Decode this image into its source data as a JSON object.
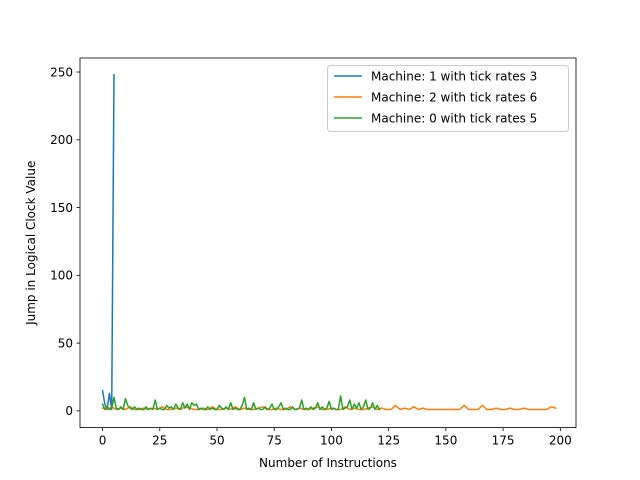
{
  "chart_data": {
    "type": "line",
    "title": "",
    "xlabel": "Number of Instructions",
    "ylabel": "Jump in Logical Clock Value",
    "xlim": [
      -9.85,
      206.85
    ],
    "ylim": [
      -12.35,
      260.35
    ],
    "xticks": [
      0,
      25,
      50,
      75,
      100,
      125,
      150,
      175,
      200
    ],
    "yticks": [
      0,
      50,
      100,
      150,
      200,
      250
    ],
    "grid": false,
    "legend_position": "top-right",
    "series": [
      {
        "name": "Machine: 1 with tick rates 3",
        "color": "#1f77b4",
        "x": [
          0,
          1,
          2,
          3,
          4,
          5
        ],
        "y": [
          15,
          5,
          1,
          13,
          1,
          248
        ]
      },
      {
        "name": "Machine: 2 with tick rates 6",
        "color": "#ff7f0e",
        "x": [
          0,
          2,
          4,
          6,
          8,
          10,
          12,
          14,
          16,
          18,
          20,
          22,
          24,
          26,
          28,
          30,
          32,
          34,
          36,
          38,
          40,
          42,
          44,
          46,
          48,
          50,
          52,
          54,
          56,
          58,
          60,
          62,
          64,
          66,
          68,
          70,
          72,
          74,
          76,
          78,
          80,
          82,
          84,
          86,
          88,
          90,
          92,
          94,
          96,
          98,
          100,
          102,
          104,
          106,
          108,
          110,
          112,
          114,
          116,
          118,
          120,
          122,
          124,
          126,
          128,
          130,
          132,
          134,
          136,
          138,
          140,
          142,
          144,
          146,
          148,
          150,
          152,
          154,
          156,
          158,
          160,
          162,
          164,
          166,
          168,
          170,
          172,
          174,
          176,
          178,
          180,
          182,
          184,
          186,
          188,
          190,
          192,
          194,
          196,
          198
        ],
        "y": [
          2,
          1,
          3,
          1,
          2,
          1,
          3,
          1,
          1,
          2,
          1,
          2,
          1,
          3,
          1,
          1,
          2,
          1,
          3,
          2,
          1,
          1,
          2,
          1,
          3,
          1,
          1,
          2,
          1,
          3,
          1,
          2,
          1,
          1,
          2,
          3,
          1,
          1,
          2,
          1,
          1,
          3,
          1,
          2,
          1,
          1,
          2,
          3,
          1,
          1,
          2,
          1,
          1,
          3,
          1,
          2,
          1,
          1,
          2,
          3,
          1,
          2,
          1,
          1,
          4,
          1,
          2,
          1,
          3,
          1,
          2,
          1,
          1,
          1,
          1,
          1,
          1,
          1,
          1,
          4,
          1,
          1,
          1,
          4,
          1,
          1,
          2,
          1,
          1,
          2,
          1,
          1,
          2,
          1,
          1,
          1,
          1,
          1,
          3,
          2
        ]
      },
      {
        "name": "Machine: 0 with tick rates 5",
        "color": "#2ca02c",
        "x": [
          0,
          1,
          2,
          3,
          4,
          5,
          6,
          7,
          8,
          9,
          10,
          11,
          12,
          13,
          14,
          15,
          16,
          17,
          18,
          19,
          20,
          21,
          22,
          23,
          24,
          25,
          26,
          27,
          28,
          29,
          30,
          31,
          32,
          33,
          34,
          35,
          36,
          37,
          38,
          39,
          40,
          41,
          42,
          43,
          44,
          45,
          46,
          47,
          48,
          49,
          50,
          51,
          52,
          53,
          54,
          55,
          56,
          57,
          58,
          59,
          60,
          61,
          62,
          63,
          64,
          65,
          66,
          67,
          68,
          69,
          70,
          71,
          72,
          73,
          74,
          75,
          76,
          77,
          78,
          79,
          80,
          81,
          82,
          83,
          84,
          85,
          86,
          87,
          88,
          89,
          90,
          91,
          92,
          93,
          94,
          95,
          96,
          97,
          98,
          99,
          100,
          101,
          102,
          103,
          104,
          105,
          106,
          107,
          108,
          109,
          110,
          111,
          112,
          113,
          114,
          115,
          116,
          117,
          118,
          119,
          120,
          121
        ],
        "y": [
          5,
          1,
          3,
          1,
          2,
          10,
          2,
          1,
          3,
          1,
          9,
          4,
          2,
          1,
          3,
          1,
          2,
          1,
          1,
          3,
          1,
          2,
          1,
          8,
          1,
          2,
          1,
          1,
          4,
          2,
          3,
          1,
          5,
          2,
          1,
          6,
          2,
          5,
          1,
          6,
          4,
          5,
          1,
          2,
          1,
          1,
          3,
          1,
          2,
          1,
          1,
          4,
          2,
          1,
          3,
          1,
          6,
          1,
          2,
          1,
          1,
          4,
          10,
          1,
          2,
          1,
          6,
          1,
          2,
          1,
          1,
          3,
          1,
          2,
          5,
          1,
          1,
          3,
          6,
          1,
          2,
          1,
          1,
          3,
          1,
          1,
          2,
          8,
          1,
          2,
          1,
          3,
          1,
          2,
          6,
          1,
          3,
          1,
          2,
          7,
          1,
          2,
          1,
          1,
          11,
          1,
          2,
          3,
          8,
          1,
          5,
          2,
          6,
          1,
          3,
          8,
          1,
          2,
          6,
          1,
          4,
          1
        ]
      }
    ]
  }
}
